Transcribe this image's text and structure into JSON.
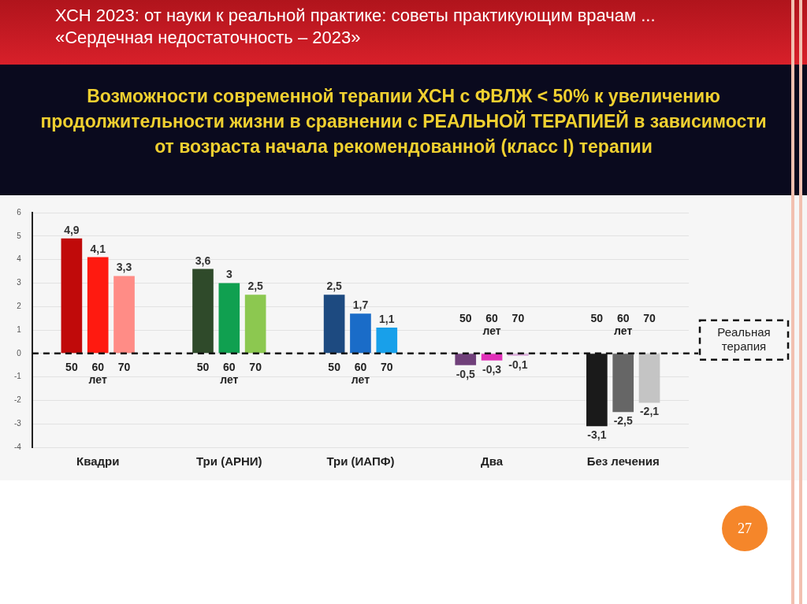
{
  "chart_data": {
    "type": "bar",
    "title": "Возможности современной  терапии ХСН с ФВЛЖ < 50%  к увеличению продолжительности жизни в сравнении с РЕАЛЬНОЙ ТЕРАПИЕЙ в зависимости от возраста начала рекомендованной (класс I) терапии",
    "subtitle": "ХСН 2023: от науки к реальной практике: советы практикующим врачам ... «Сердечная недостаточность – 2023»",
    "categories": [
      "Квадри",
      "Три (АРНИ)",
      "Три (ИАПФ)",
      "Два",
      "Без лечения"
    ],
    "series": [
      {
        "name": "50",
        "colors": [
          "#c00a0a",
          "#2f4a2a",
          "#1d4a80",
          "#70407a",
          "#1a1a1a"
        ],
        "values": [
          4.9,
          3.6,
          2.5,
          -0.5,
          -3.1
        ],
        "value_labels": [
          "4,9",
          "3,6",
          "2,5",
          "-0,5",
          "-3,1"
        ]
      },
      {
        "name": "60",
        "colors": [
          "#ff1a10",
          "#10a050",
          "#1a6cc8",
          "#e030b8",
          "#666666"
        ],
        "values": [
          4.1,
          3,
          1.7,
          -0.3,
          -2.5
        ],
        "value_labels": [
          "4,1",
          "3",
          "1,7",
          "-0,3",
          "-2,5"
        ]
      },
      {
        "name": "70",
        "colors": [
          "#ff8c86",
          "#8cc850",
          "#18a0ea",
          "#d8a8d8",
          "#c4c4c4"
        ],
        "values": [
          3.3,
          2.5,
          1.1,
          -0.1,
          -2.1
        ],
        "value_labels": [
          "3,3",
          "2,5",
          "1,1",
          "-0,1",
          "-2,1"
        ]
      }
    ],
    "ylim": [
      -4,
      6
    ],
    "yticks": [
      -4,
      -3,
      -2,
      -1,
      0,
      1,
      2,
      3,
      4,
      5,
      6
    ],
    "grid": "y",
    "legend": false,
    "ref_lines": [
      {
        "axis": "y",
        "value": 0,
        "label": "Реальная терапия",
        "line_style": "dashed",
        "color": "#111111"
      }
    ],
    "annotations": [
      "лет",
      "лет",
      "лет",
      "лет",
      "лет",
      "27"
    ]
  }
}
